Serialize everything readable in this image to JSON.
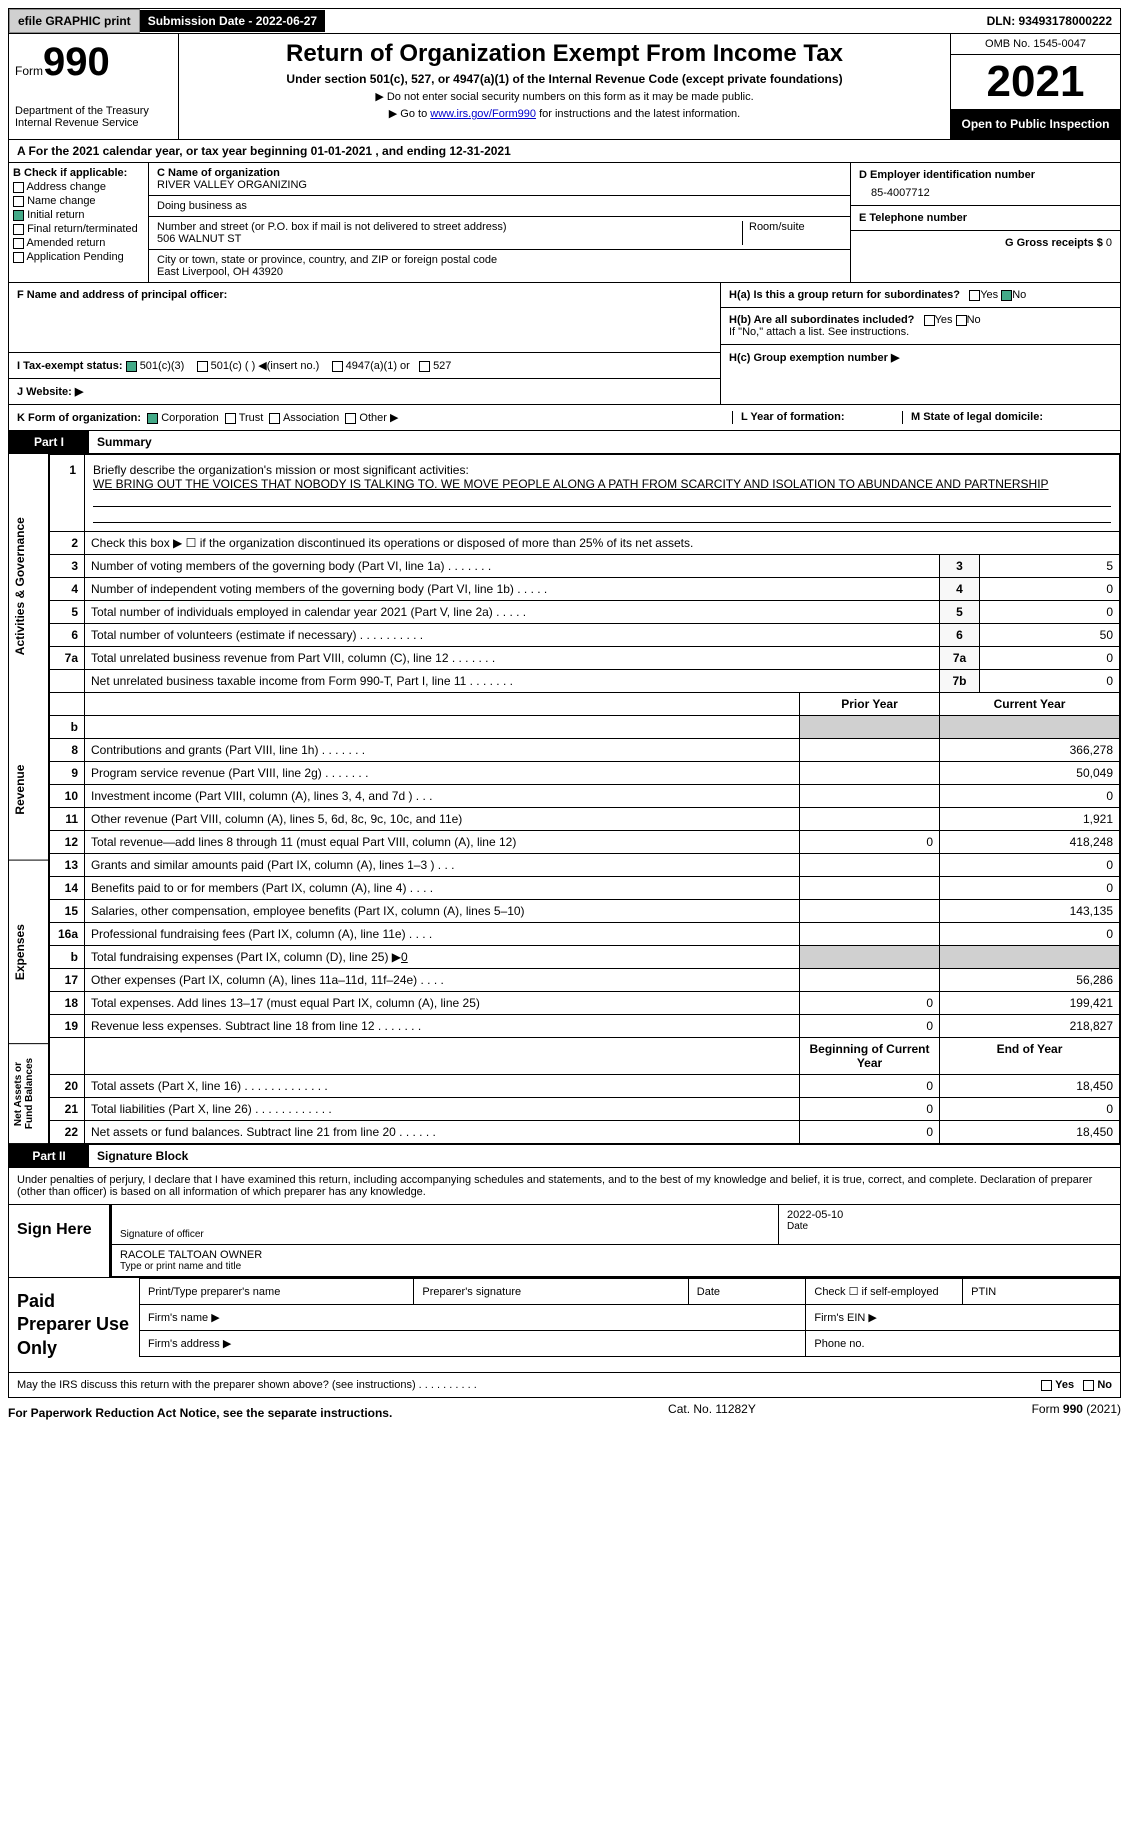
{
  "top": {
    "efile": "efile GRAPHIC print",
    "submission": "Submission Date - 2022-06-27",
    "dln": "DLN: 93493178000222"
  },
  "header": {
    "form_label": "Form",
    "form_num": "990",
    "dept": "Department of the Treasury",
    "irs": "Internal Revenue Service",
    "title": "Return of Organization Exempt From Income Tax",
    "sub": "Under section 501(c), 527, or 4947(a)(1) of the Internal Revenue Code (except private foundations)",
    "note1": "▶ Do not enter social security numbers on this form as it may be made public.",
    "note2_pre": "▶ Go to ",
    "note2_link": "www.irs.gov/Form990",
    "note2_post": " for instructions and the latest information.",
    "omb": "OMB No. 1545-0047",
    "year": "2021",
    "open": "Open to Public Inspection"
  },
  "period": {
    "text": "A For the 2021 calendar year, or tax year beginning 01-01-2021    , and ending 12-31-2021"
  },
  "sectionB": {
    "label": "B Check if applicable:",
    "items": [
      "Address change",
      "Name change",
      "Initial return",
      "Final return/terminated",
      "Amended return",
      "Application Pending"
    ],
    "checked_idx": 2
  },
  "sectionC": {
    "name_label": "C Name of organization",
    "name": "RIVER VALLEY ORGANIZING",
    "dba_label": "Doing business as",
    "dba": "",
    "addr_label": "Number and street (or P.O. box if mail is not delivered to street address)",
    "room_label": "Room/suite",
    "addr": "506 WALNUT ST",
    "city_label": "City or town, state or province, country, and ZIP or foreign postal code",
    "city": "East Liverpool, OH  43920",
    "officer_label": "F Name and address of principal officer:",
    "officer": ""
  },
  "sectionD": {
    "label": "D Employer identification number",
    "ein": "85-4007712",
    "phone_label": "E Telephone number",
    "phone": "",
    "receipts_label": "G Gross receipts $",
    "receipts": "0"
  },
  "sectionH": {
    "a_label": "H(a)  Is this a group return for subordinates?",
    "b_label": "H(b)  Are all subordinates included?",
    "b_note": "If \"No,\" attach a list. See instructions.",
    "c_label": "H(c)  Group exemption number ▶"
  },
  "sectionI": {
    "label": "I   Tax-exempt status:",
    "opts": [
      "501(c)(3)",
      "501(c) (  ) ◀(insert no.)",
      "4947(a)(1) or",
      "527"
    ]
  },
  "sectionJ": {
    "label": "J   Website: ▶",
    "value": ""
  },
  "sectionK": {
    "label": "K Form of organization:",
    "opts": [
      "Corporation",
      "Trust",
      "Association",
      "Other ▶"
    ]
  },
  "sectionL": {
    "label": "L Year of formation:",
    "value": ""
  },
  "sectionM": {
    "label": "M State of legal domicile:",
    "value": ""
  },
  "part1": {
    "header": "Part I",
    "title": "Summary",
    "q1_label": "1",
    "q1_text": "Briefly describe the organization's mission or most significant activities:",
    "q1_value": "WE BRING OUT THE VOICES THAT NOBODY IS TALKING TO. WE MOVE PEOPLE ALONG A PATH FROM SCARCITY AND ISOLATION TO ABUNDANCE AND PARTNERSHIP",
    "q2_text": "Check this box ▶ ☐  if the organization discontinued its operations or disposed of more than 25% of its net assets.",
    "governance_label": "Activities & Governance",
    "governance_rows": [
      {
        "num": "3",
        "desc": "Number of voting members of the governing body (Part VI, line 1a)   .    .    .    .    .    .    .",
        "box": "3",
        "val": "5"
      },
      {
        "num": "4",
        "desc": "Number of independent voting members of the governing body (Part VI, line 1b)   .    .    .    .    .",
        "box": "4",
        "val": "0"
      },
      {
        "num": "5",
        "desc": "Total number of individuals employed in calendar year 2021 (Part V, line 2a)   .    .    .    .    .",
        "box": "5",
        "val": "0"
      },
      {
        "num": "6",
        "desc": "Total number of volunteers (estimate if necessary)    .    .    .    .    .    .    .    .    .    .",
        "box": "6",
        "val": "50"
      },
      {
        "num": "7a",
        "desc": "Total unrelated business revenue from Part VIII, column (C), line 12   .    .    .    .    .    .    .",
        "box": "7a",
        "val": "0"
      },
      {
        "num": "",
        "desc": "Net unrelated business taxable income from Form 990-T, Part I, line 11   .    .    .    .    .    .    .",
        "box": "7b",
        "val": "0"
      }
    ],
    "revenue_label": "Revenue",
    "col_headers": {
      "prior": "Prior Year",
      "current": "Current Year"
    },
    "revenue_rows": [
      {
        "num": "b",
        "desc": "",
        "prior": "",
        "current": "",
        "shaded": true
      },
      {
        "num": "8",
        "desc": "Contributions and grants (Part VIII, line 1h)    .    .    .    .    .    .    .",
        "prior": "",
        "current": "366,278"
      },
      {
        "num": "9",
        "desc": "Program service revenue (Part VIII, line 2g)    .    .    .    .    .    .    .",
        "prior": "",
        "current": "50,049"
      },
      {
        "num": "10",
        "desc": "Investment income (Part VIII, column (A), lines 3, 4, and 7d )    .    .    .",
        "prior": "",
        "current": "0"
      },
      {
        "num": "11",
        "desc": "Other revenue (Part VIII, column (A), lines 5, 6d, 8c, 9c, 10c, and 11e)",
        "prior": "",
        "current": "1,921"
      },
      {
        "num": "12",
        "desc": "Total revenue—add lines 8 through 11 (must equal Part VIII, column (A), line 12)",
        "prior": "0",
        "current": "418,248"
      }
    ],
    "expenses_label": "Expenses",
    "expenses_rows": [
      {
        "num": "13",
        "desc": "Grants and similar amounts paid (Part IX, column (A), lines 1–3 )   .    .    .",
        "prior": "",
        "current": "0"
      },
      {
        "num": "14",
        "desc": "Benefits paid to or for members (Part IX, column (A), line 4)   .    .    .    .",
        "prior": "",
        "current": "0"
      },
      {
        "num": "15",
        "desc": "Salaries, other compensation, employee benefits (Part IX, column (A), lines 5–10)",
        "prior": "",
        "current": "143,135"
      },
      {
        "num": "16a",
        "desc": "Professional fundraising fees (Part IX, column (A), line 11e)   .    .    .    .",
        "prior": "",
        "current": "0"
      },
      {
        "num": "b",
        "desc": "Total fundraising expenses (Part IX, column (D), line 25) ▶",
        "prior": "",
        "current": "",
        "shaded": true,
        "inline_val": "0"
      },
      {
        "num": "17",
        "desc": "Other expenses (Part IX, column (A), lines 11a–11d, 11f–24e)   .    .    .    .",
        "prior": "",
        "current": "56,286"
      },
      {
        "num": "18",
        "desc": "Total expenses. Add lines 13–17 (must equal Part IX, column (A), line 25)",
        "prior": "0",
        "current": "199,421"
      },
      {
        "num": "19",
        "desc": "Revenue less expenses. Subtract line 18 from line 12   .    .    .    .    .    .    .",
        "prior": "0",
        "current": "218,827"
      }
    ],
    "netassets_label": "Net Assets or Fund Balances",
    "na_headers": {
      "begin": "Beginning of Current Year",
      "end": "End of Year"
    },
    "na_rows": [
      {
        "num": "20",
        "desc": "Total assets (Part X, line 16)   .    .    .    .    .    .    .    .    .    .    .    .    .",
        "prior": "0",
        "current": "18,450"
      },
      {
        "num": "21",
        "desc": "Total liabilities (Part X, line 26)   .    .    .    .    .    .    .    .    .    .    .    .",
        "prior": "0",
        "current": "0"
      },
      {
        "num": "22",
        "desc": "Net assets or fund balances. Subtract line 21 from line 20   .    .    .    .    .    .",
        "prior": "0",
        "current": "18,450"
      }
    ]
  },
  "part2": {
    "header": "Part II",
    "title": "Signature Block",
    "declare": "Under penalties of perjury, I declare that I have examined this return, including accompanying schedules and statements, and to the best of my knowledge and belief, it is true, correct, and complete. Declaration of preparer (other than officer) is based on all information of which preparer has any knowledge.",
    "sign_label": "Sign Here",
    "sig_caption": "Signature of officer",
    "date_caption": "Date",
    "date_value": "2022-05-10",
    "name_value": "RACOLE TALTOAN  OWNER",
    "name_caption": "Type or print name and title",
    "prep_label": "Paid Preparer Use Only",
    "prep_name_label": "Print/Type preparer's name",
    "prep_sig_label": "Preparer's signature",
    "prep_date_label": "Date",
    "prep_check_label": "Check ☐ if self-employed",
    "prep_ptin_label": "PTIN",
    "firm_name_label": "Firm's name    ▶",
    "firm_ein_label": "Firm's EIN ▶",
    "firm_addr_label": "Firm's address ▶",
    "firm_phone_label": "Phone no."
  },
  "footer": {
    "discuss": "May the IRS discuss this return with the preparer shown above? (see instructions)   .    .    .    .    .    .    .    .    .    .",
    "yes": "Yes",
    "no": "No",
    "notice": "For Paperwork Reduction Act Notice, see the separate instructions.",
    "cat": "Cat. No. 11282Y",
    "form": "Form 990 (2021)"
  }
}
